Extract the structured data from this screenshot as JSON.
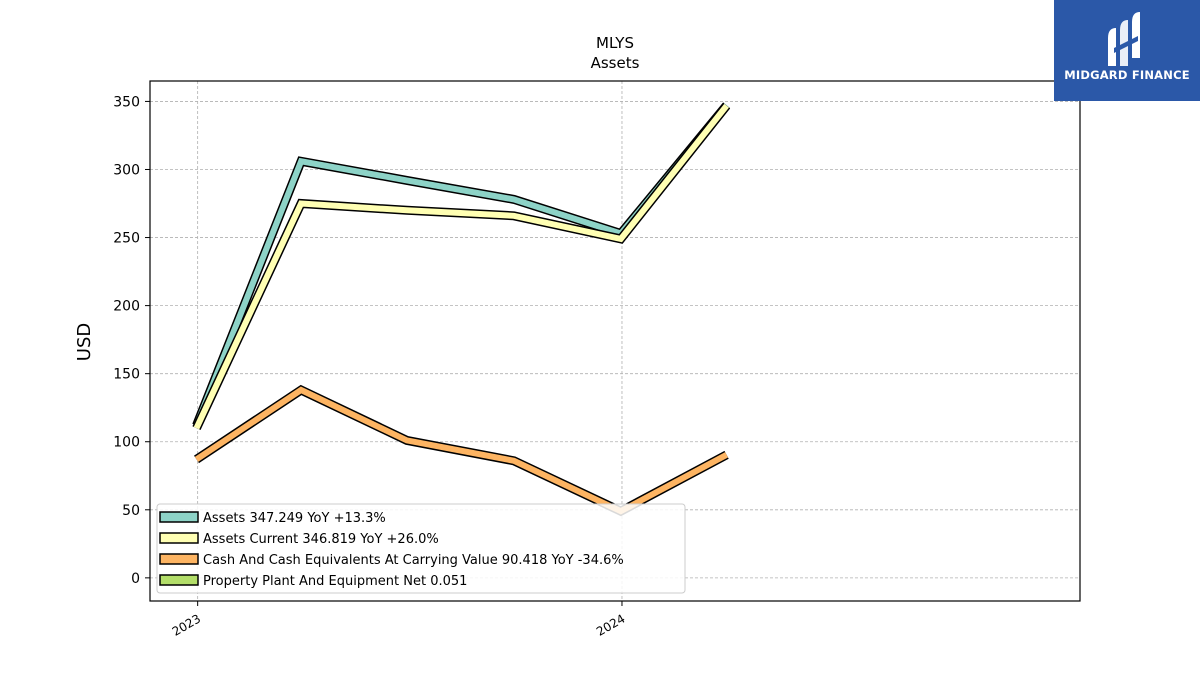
{
  "brand": {
    "name": "MIDGARD FINANCE",
    "bg_color": "#2b58a8"
  },
  "chart_data": {
    "type": "line",
    "title": "MLYS",
    "subtitle": "Assets",
    "xlabel": "",
    "ylabel": "USD",
    "ylim": [
      -17,
      365
    ],
    "yticks": [
      0,
      50,
      100,
      150,
      200,
      250,
      300,
      350
    ],
    "xlim": [
      "2022-11-21",
      "2025-01-29"
    ],
    "xticks": [
      {
        "label": "2023",
        "value": "2023-01-01"
      },
      {
        "label": "2024",
        "value": "2024-01-01"
      }
    ],
    "grid": true,
    "legend_position": "lower-left",
    "series": [
      {
        "name": "Assets",
        "legend_label": "Assets  347.249 YoY +13.3%",
        "color": "#8dd3c7",
        "points": [
          [
            "2022-12-31",
            112
          ],
          [
            "2023-03-31",
            306
          ],
          [
            "2023-06-30",
            292
          ],
          [
            "2023-09-30",
            278
          ],
          [
            "2023-12-31",
            253
          ],
          [
            "2024-03-31",
            347.249
          ]
        ]
      },
      {
        "name": "Assets Current",
        "legend_label": "Assets Current  346.819 YoY +26.0%",
        "color": "#ffffb3",
        "points": [
          [
            "2022-12-31",
            110
          ],
          [
            "2023-03-31",
            275
          ],
          [
            "2023-06-30",
            270
          ],
          [
            "2023-09-30",
            266
          ],
          [
            "2023-12-31",
            249
          ],
          [
            "2024-03-31",
            346.819
          ]
        ]
      },
      {
        "name": "Cash And Cash Equivalents At Carrying Value",
        "legend_label": "Cash And Cash Equivalents At Carrying Value  90.418 YoY -34.6%",
        "color": "#fdb462",
        "points": [
          [
            "2022-12-31",
            87
          ],
          [
            "2023-03-31",
            138
          ],
          [
            "2023-06-30",
            101
          ],
          [
            "2023-09-30",
            86
          ],
          [
            "2023-12-31",
            49
          ],
          [
            "2024-03-31",
            90.418
          ]
        ]
      },
      {
        "name": "Property Plant And Equipment Net",
        "legend_label": "Property Plant And Equipment Net  0.051",
        "color": "#b3de69",
        "points": []
      }
    ]
  }
}
